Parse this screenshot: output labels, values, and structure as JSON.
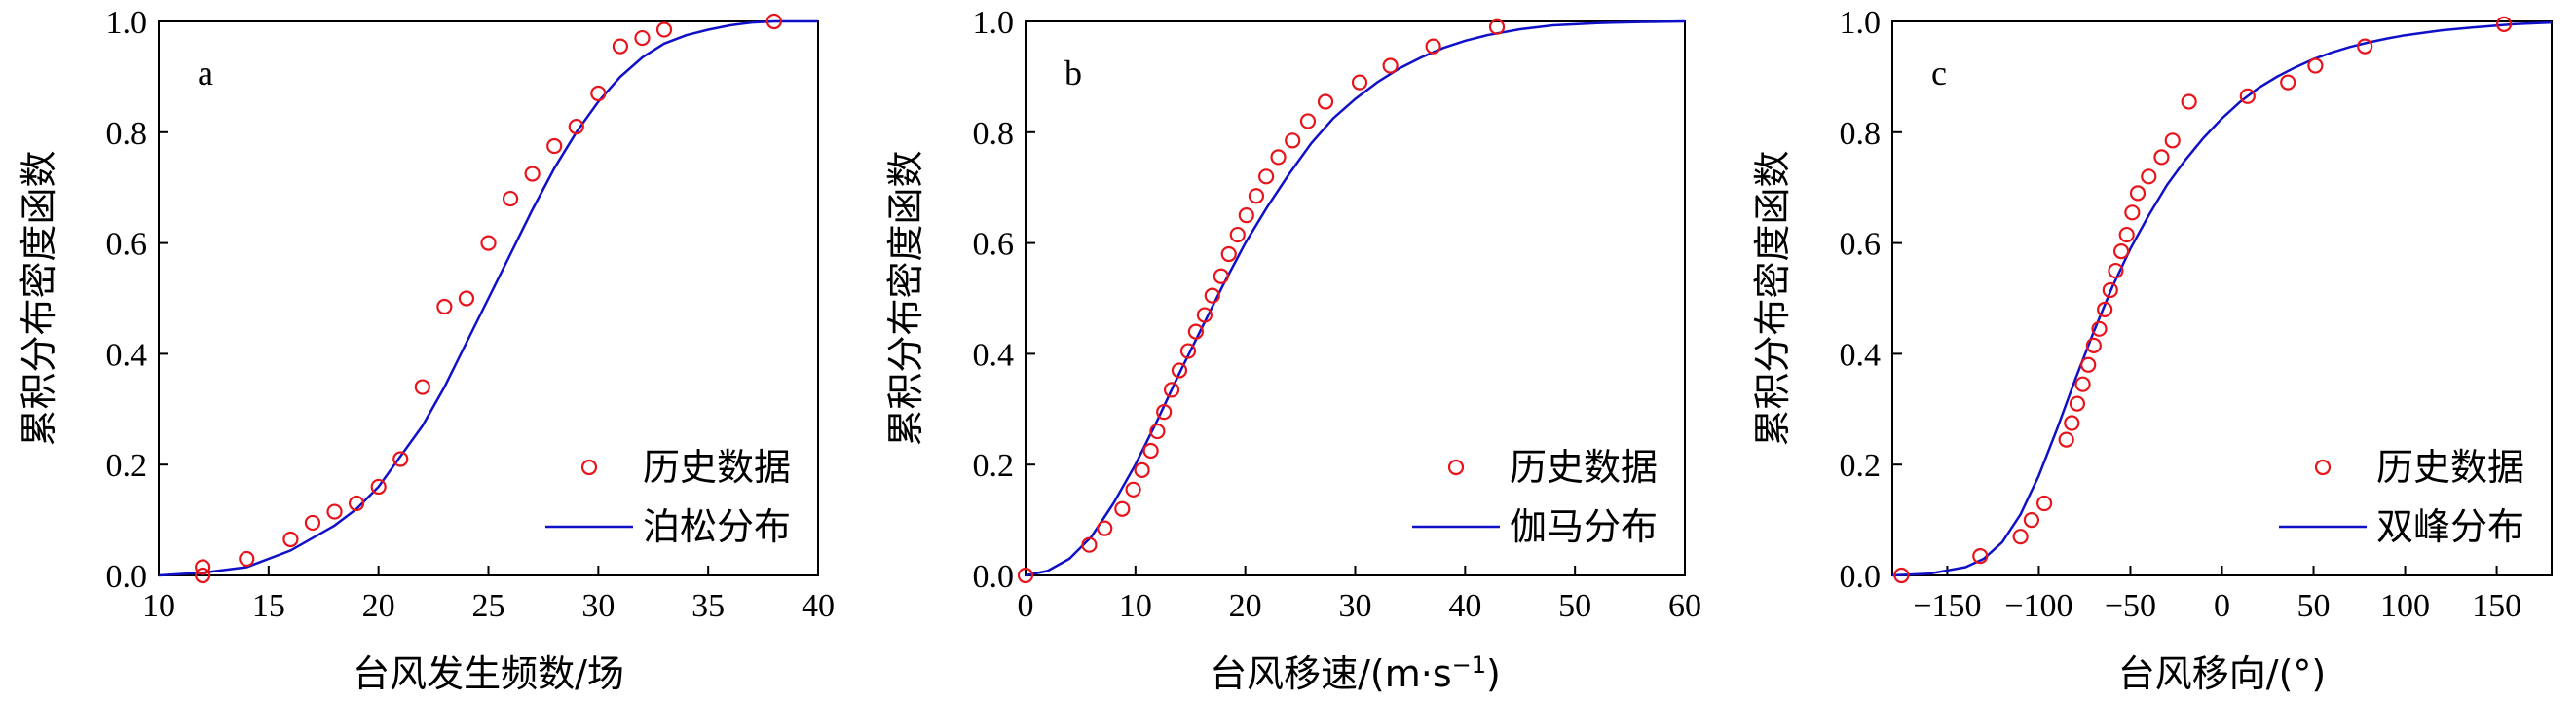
{
  "colors": {
    "points": "#e8141b",
    "curve": "#1010c8",
    "axis": "#000000"
  },
  "chart_data": [
    {
      "type": "scatter",
      "panel_letter": "a",
      "xlabel": "台风发生频数/场",
      "ylabel": "累积分布密度函数",
      "xlim": [
        10,
        40
      ],
      "ylim": [
        0,
        1
      ],
      "xticks": [
        10,
        15,
        20,
        25,
        30,
        35,
        40
      ],
      "yticks": [
        0.0,
        0.2,
        0.4,
        0.6,
        0.8,
        1.0
      ],
      "xtick_labels": [
        "10",
        "15",
        "20",
        "25",
        "30",
        "35",
        "40"
      ],
      "ytick_labels": [
        "0.0",
        "0.2",
        "0.4",
        "0.6",
        "0.8",
        "1.0"
      ],
      "legend": {
        "position": "bottom-right",
        "points_label": "历史数据",
        "curve_label": "泊松分布"
      },
      "series": [
        {
          "name": "历史数据",
          "kind": "points",
          "x": [
            12,
            12,
            14,
            16,
            17,
            18,
            19,
            20,
            21,
            22,
            23,
            24,
            25,
            26,
            27,
            28,
            29,
            30,
            31,
            32,
            33,
            38
          ],
          "y": [
            0.0,
            0.015,
            0.03,
            0.065,
            0.095,
            0.115,
            0.13,
            0.16,
            0.21,
            0.34,
            0.485,
            0.5,
            0.6,
            0.68,
            0.725,
            0.775,
            0.81,
            0.87,
            0.955,
            0.97,
            0.985,
            1.0
          ]
        },
        {
          "name": "泊松分布",
          "kind": "curve",
          "x": [
            10,
            12,
            14,
            16,
            18,
            19,
            20,
            21,
            22,
            23,
            24,
            25,
            26,
            27,
            28,
            29,
            30,
            31,
            32,
            33,
            34,
            35,
            36,
            37,
            38,
            40
          ],
          "y": [
            0.0,
            0.005,
            0.015,
            0.045,
            0.09,
            0.12,
            0.16,
            0.215,
            0.27,
            0.34,
            0.42,
            0.5,
            0.58,
            0.66,
            0.735,
            0.8,
            0.855,
            0.9,
            0.935,
            0.96,
            0.975,
            0.985,
            0.993,
            0.998,
            1.0,
            1.0
          ]
        }
      ]
    },
    {
      "type": "scatter",
      "panel_letter": "b",
      "xlabel": "台风移速/(m·s",
      "xlabel_sup": "−1",
      "xlabel_end": ")",
      "ylabel": "累积分布密度函数",
      "xlim": [
        0,
        60
      ],
      "ylim": [
        0,
        1
      ],
      "xticks": [
        0,
        10,
        20,
        30,
        40,
        50,
        60
      ],
      "yticks": [
        0.0,
        0.2,
        0.4,
        0.6,
        0.8,
        1.0
      ],
      "xtick_labels": [
        "0",
        "10",
        "20",
        "30",
        "40",
        "50",
        "60"
      ],
      "ytick_labels": [
        "0.0",
        "0.2",
        "0.4",
        "0.6",
        "0.8",
        "1.0"
      ],
      "legend": {
        "position": "bottom-right",
        "points_label": "历史数据",
        "curve_label": "伽马分布"
      },
      "series": [
        {
          "name": "历史数据",
          "kind": "points",
          "x": [
            0,
            5.8,
            7.2,
            8.8,
            9.8,
            10.6,
            11.4,
            12.0,
            12.6,
            13.3,
            14.0,
            14.8,
            15.5,
            16.3,
            17.0,
            17.8,
            18.5,
            19.3,
            20.1,
            21.0,
            21.9,
            23.0,
            24.3,
            25.7,
            27.3,
            30.4,
            33.2,
            37.1,
            42.9
          ],
          "y": [
            0.0,
            0.055,
            0.085,
            0.12,
            0.155,
            0.19,
            0.225,
            0.26,
            0.295,
            0.335,
            0.37,
            0.405,
            0.44,
            0.47,
            0.505,
            0.54,
            0.58,
            0.615,
            0.65,
            0.685,
            0.72,
            0.755,
            0.785,
            0.82,
            0.855,
            0.89,
            0.92,
            0.955,
            0.99
          ]
        },
        {
          "name": "伽马分布",
          "kind": "curve",
          "x": [
            0,
            2,
            4,
            6,
            8,
            10,
            12,
            14,
            16,
            18,
            20,
            22,
            24,
            26,
            28,
            30,
            32,
            34,
            36,
            38,
            40,
            42,
            45,
            48,
            52,
            56,
            60
          ],
          "y": [
            0.0,
            0.008,
            0.03,
            0.07,
            0.13,
            0.2,
            0.28,
            0.365,
            0.445,
            0.525,
            0.6,
            0.665,
            0.725,
            0.78,
            0.825,
            0.86,
            0.89,
            0.915,
            0.935,
            0.952,
            0.965,
            0.975,
            0.986,
            0.993,
            0.997,
            0.999,
            1.0
          ]
        }
      ]
    },
    {
      "type": "scatter",
      "panel_letter": "c",
      "xlabel": "台风移向/(°)",
      "ylabel": "累积分布密度函数",
      "xlim": [
        -180,
        180
      ],
      "ylim": [
        0,
        1
      ],
      "xticks": [
        -150,
        -100,
        -50,
        0,
        50,
        100,
        150
      ],
      "yticks": [
        0.0,
        0.2,
        0.4,
        0.6,
        0.8,
        1.0
      ],
      "xtick_labels": [
        "−150",
        "−100",
        "−50",
        "0",
        "50",
        "100",
        "150"
      ],
      "ytick_labels": [
        "0.0",
        "0.2",
        "0.4",
        "0.6",
        "0.8",
        "1.0"
      ],
      "legend": {
        "position": "bottom-right",
        "points_label": "历史数据",
        "curve_label": "双峰分布"
      },
      "series": [
        {
          "name": "历史数据",
          "kind": "points",
          "x": [
            -175,
            -132,
            -110,
            -104,
            -97,
            -85,
            -82,
            -79,
            -76,
            -73,
            -70,
            -67,
            -64,
            -61,
            -58,
            -55,
            -52,
            -49,
            -46,
            -40,
            -33,
            -27,
            -18,
            14,
            36,
            51,
            78,
            154
          ],
          "y": [
            0.0,
            0.035,
            0.07,
            0.1,
            0.13,
            0.245,
            0.275,
            0.31,
            0.345,
            0.38,
            0.415,
            0.445,
            0.48,
            0.515,
            0.55,
            0.585,
            0.615,
            0.655,
            0.69,
            0.72,
            0.755,
            0.785,
            0.855,
            0.865,
            0.89,
            0.92,
            0.955,
            0.995
          ]
        },
        {
          "name": "双峰分布",
          "kind": "curve",
          "x": [
            -180,
            -160,
            -140,
            -130,
            -120,
            -110,
            -100,
            -90,
            -80,
            -70,
            -60,
            -50,
            -40,
            -30,
            -20,
            -10,
            0,
            10,
            20,
            30,
            40,
            50,
            60,
            70,
            80,
            90,
            100,
            120,
            140,
            160,
            180
          ],
          "y": [
            0.0,
            0.003,
            0.015,
            0.03,
            0.06,
            0.11,
            0.18,
            0.265,
            0.355,
            0.44,
            0.52,
            0.59,
            0.65,
            0.705,
            0.75,
            0.79,
            0.825,
            0.855,
            0.88,
            0.9,
            0.917,
            0.932,
            0.944,
            0.954,
            0.962,
            0.969,
            0.975,
            0.984,
            0.99,
            0.995,
            0.998
          ]
        }
      ]
    }
  ]
}
